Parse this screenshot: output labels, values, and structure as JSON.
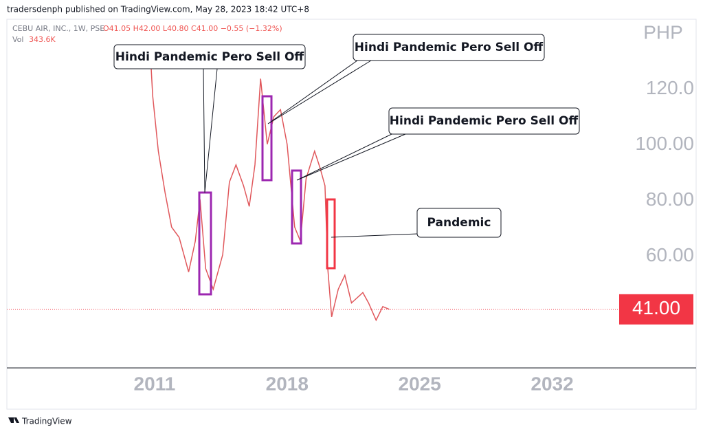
{
  "header": {
    "published": "tradersdenph published on TradingView.com, May 28, 2023 18:42 UTC+8",
    "symbol": "CEBU AIR, INC., 1W, PSE",
    "ohlc": "O41.05 H42.00 L40.80 C41.00 −0.55 (−1.32%)",
    "volume_label": "Vol",
    "volume": "343.6K"
  },
  "footer": "TradingView",
  "chart_data": {
    "type": "line",
    "currency": "PHP",
    "series": [
      {
        "name": "CEBU AIR",
        "color": "#e0575b",
        "x": [
          2010.82,
          2010.9,
          2011.2,
          2011.55,
          2011.9,
          2012.3,
          2012.8,
          2013.15,
          2013.4,
          2013.7,
          2014.1,
          2014.6,
          2014.95,
          2015.3,
          2015.7,
          2016.0,
          2016.3,
          2016.6,
          2016.95,
          2017.3,
          2017.65,
          2018.0,
          2018.4,
          2018.7,
          2019.0,
          2019.45,
          2019.75,
          2020.0,
          2020.15,
          2020.35,
          2020.7,
          2021.05,
          2021.4,
          2022.0,
          2022.3,
          2022.7,
          2023.05,
          2023.4
        ],
        "values": [
          127.4,
          117.5,
          97.7,
          83,
          70.5,
          66.8,
          54.4,
          65.5,
          80.4,
          55.6,
          48.2,
          60.6,
          86.6,
          92.8,
          85.3,
          77.9,
          92.8,
          123.7,
          100.2,
          110.1,
          112.6,
          100.2,
          70.5,
          65.5,
          87.8,
          97.7,
          91.5,
          85.3,
          55.6,
          38.3,
          48.2,
          53.2,
          43.3,
          47,
          43.3,
          37.1,
          42,
          41
        ]
      }
    ],
    "last_price": {
      "value": 41,
      "label": "41.00"
    },
    "xlim": [
      2003.2,
      2035.5
    ],
    "xticks": [
      2011,
      2018,
      2025,
      2032
    ],
    "ylim": [
      20,
      145
    ],
    "yticks": [
      {
        "value": 60,
        "label": "60.00"
      },
      {
        "value": 80,
        "label": "80.00"
      },
      {
        "value": 100,
        "label": "100.00"
      },
      {
        "value": 120,
        "label": "120.0"
      }
    ],
    "annotations": [
      "Hindi Pandemic Pero Sell Off",
      "Hindi Pandemic Pero Sell Off",
      "Hindi Pandemic Pero Sell Off",
      "Pandemic"
    ]
  }
}
